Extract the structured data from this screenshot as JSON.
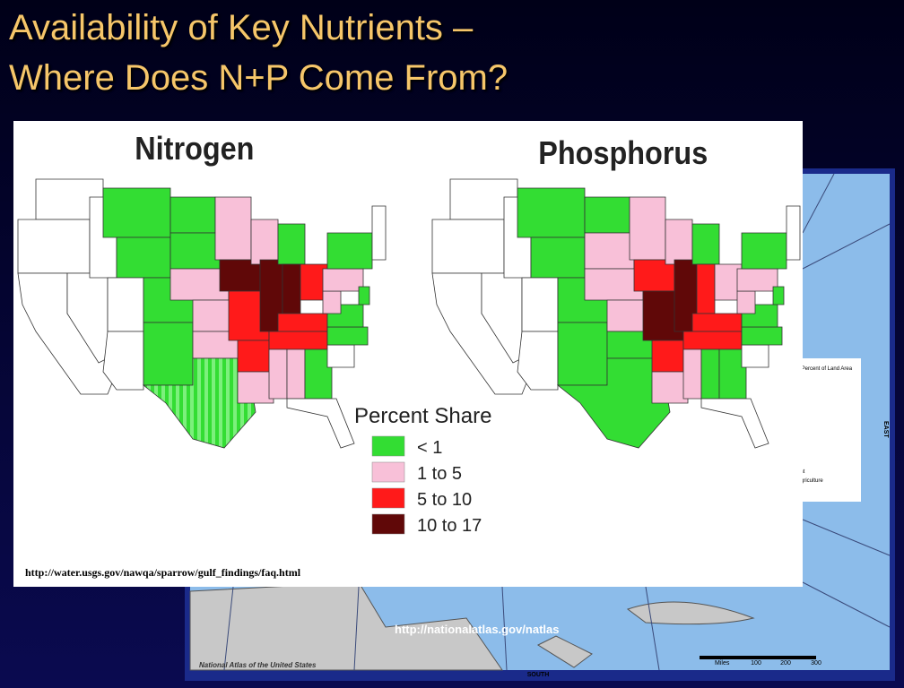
{
  "slide": {
    "title_lines": [
      "Availability of Key Nutrients –",
      "Where Does N+P Come From?"
    ]
  },
  "panel": {
    "maps": [
      {
        "title": "Nitrogen"
      },
      {
        "title": "Phosphorus"
      }
    ],
    "legend": {
      "title": "Percent Share",
      "items": [
        "< 1",
        "1 to 5",
        "5 to 10",
        "10 to 17"
      ]
    },
    "source_url": "http://water.usgs.gov/nawqa/sparrow/gulf_findings/faq.html"
  },
  "background_map": {
    "url": "http://nationalatlas.gov/natlas",
    "south": "SOUTH",
    "east": "EAST",
    "credit": "National Atlas of the United States",
    "scale": {
      "unit": "Miles",
      "ticks": [
        "100",
        "200",
        "300"
      ]
    },
    "legend_fragments": [
      "s Percent of Land Area",
      "e",
      "ent",
      "Agriculture"
    ]
  }
}
